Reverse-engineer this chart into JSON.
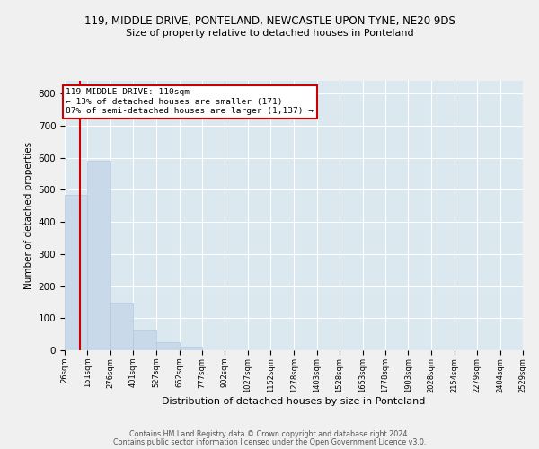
{
  "title_line1": "119, MIDDLE DRIVE, PONTELAND, NEWCASTLE UPON TYNE, NE20 9DS",
  "title_line2": "Size of property relative to detached houses in Ponteland",
  "xlabel": "Distribution of detached houses by size in Ponteland",
  "ylabel": "Number of detached properties",
  "bar_color": "#c9d9ea",
  "bar_edge_color": "#b0c8dc",
  "background_color": "#dce8f0",
  "grid_color": "#ffffff",
  "fig_background": "#f0f0f0",
  "bins": [
    26,
    151,
    276,
    401,
    527,
    652,
    777,
    902,
    1027,
    1152,
    1278,
    1403,
    1528,
    1653,
    1778,
    1903,
    2028,
    2154,
    2279,
    2404,
    2529
  ],
  "heights": [
    484,
    590,
    148,
    62,
    26,
    10,
    0,
    0,
    0,
    0,
    0,
    0,
    0,
    0,
    0,
    0,
    0,
    0,
    0,
    0
  ],
  "property_size": 110,
  "property_line_color": "#cc0000",
  "annotation_text": "119 MIDDLE DRIVE: 110sqm\n← 13% of detached houses are smaller (171)\n87% of semi-detached houses are larger (1,137) →",
  "annotation_box_color": "#ffffff",
  "annotation_border_color": "#cc0000",
  "ylim": [
    0,
    840
  ],
  "yticks": [
    0,
    100,
    200,
    300,
    400,
    500,
    600,
    700,
    800
  ],
  "footer_line1": "Contains HM Land Registry data © Crown copyright and database right 2024.",
  "footer_line2": "Contains public sector information licensed under the Open Government Licence v3.0."
}
